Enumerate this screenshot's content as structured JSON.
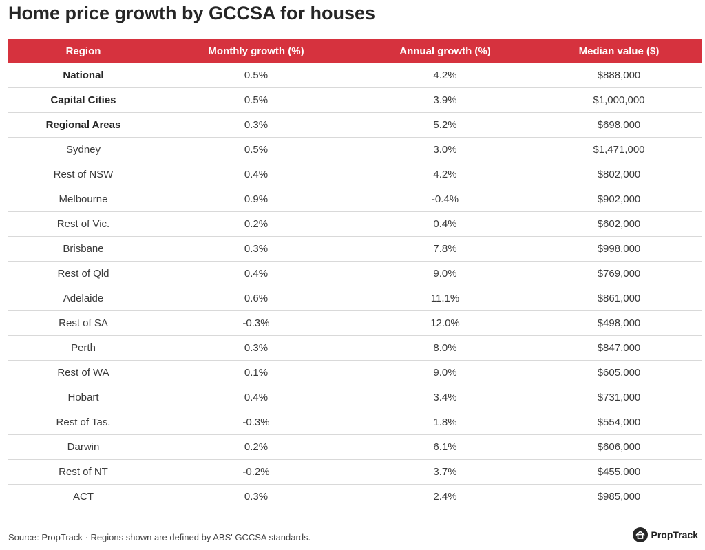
{
  "title": "Home price growth by GCCSA for houses",
  "source": "Source: PropTrack · Regions shown are defined by ABS' GCCSA standards.",
  "brand": {
    "name": "PropTrack",
    "icon": "proptrack-house-icon"
  },
  "colors": {
    "header_bg": "#d6323e",
    "header_text": "#ffffff",
    "row_divider": "#d9d9d9"
  },
  "chart_data": {
    "type": "table",
    "title": "Home price growth by GCCSA for houses",
    "columns": [
      "Region",
      "Monthly growth (%)",
      "Annual growth (%)",
      "Median value ($)"
    ],
    "rows": [
      {
        "region": "National",
        "monthly": "0.5%",
        "annual": "4.2%",
        "median": "$888,000",
        "bold": true
      },
      {
        "region": "Capital Cities",
        "monthly": "0.5%",
        "annual": "3.9%",
        "median": "$1,000,000",
        "bold": true
      },
      {
        "region": "Regional Areas",
        "monthly": "0.3%",
        "annual": "5.2%",
        "median": "$698,000",
        "bold": true
      },
      {
        "region": "Sydney",
        "monthly": "0.5%",
        "annual": "3.0%",
        "median": "$1,471,000",
        "bold": false
      },
      {
        "region": "Rest of NSW",
        "monthly": "0.4%",
        "annual": "4.2%",
        "median": "$802,000",
        "bold": false
      },
      {
        "region": "Melbourne",
        "monthly": "0.9%",
        "annual": "-0.4%",
        "median": "$902,000",
        "bold": false
      },
      {
        "region": "Rest of Vic.",
        "monthly": "0.2%",
        "annual": "0.4%",
        "median": "$602,000",
        "bold": false
      },
      {
        "region": "Brisbane",
        "monthly": "0.3%",
        "annual": "7.8%",
        "median": "$998,000",
        "bold": false
      },
      {
        "region": "Rest of Qld",
        "monthly": "0.4%",
        "annual": "9.0%",
        "median": "$769,000",
        "bold": false
      },
      {
        "region": "Adelaide",
        "monthly": "0.6%",
        "annual": "11.1%",
        "median": "$861,000",
        "bold": false
      },
      {
        "region": "Rest of SA",
        "monthly": "-0.3%",
        "annual": "12.0%",
        "median": "$498,000",
        "bold": false
      },
      {
        "region": "Perth",
        "monthly": "0.3%",
        "annual": "8.0%",
        "median": "$847,000",
        "bold": false
      },
      {
        "region": "Rest of WA",
        "monthly": "0.1%",
        "annual": "9.0%",
        "median": "$605,000",
        "bold": false
      },
      {
        "region": "Hobart",
        "monthly": "0.4%",
        "annual": "3.4%",
        "median": "$731,000",
        "bold": false
      },
      {
        "region": "Rest of Tas.",
        "monthly": "-0.3%",
        "annual": "1.8%",
        "median": "$554,000",
        "bold": false
      },
      {
        "region": "Darwin",
        "monthly": "0.2%",
        "annual": "6.1%",
        "median": "$606,000",
        "bold": false
      },
      {
        "region": "Rest of NT",
        "monthly": "-0.2%",
        "annual": "3.7%",
        "median": "$455,000",
        "bold": false
      },
      {
        "region": "ACT",
        "monthly": "0.3%",
        "annual": "2.4%",
        "median": "$985,000",
        "bold": false
      }
    ]
  }
}
